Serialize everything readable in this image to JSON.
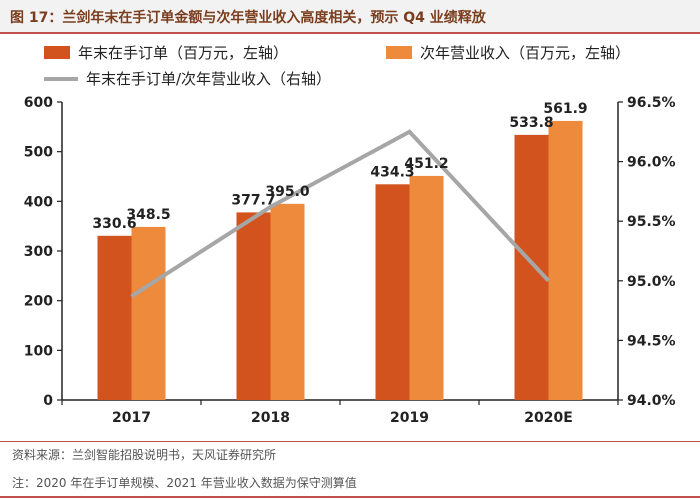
{
  "header": {
    "title": "图 17：兰剑年末在手订单金额与次年营业收入高度相关，预示 Q4 业绩释放"
  },
  "chart_data": {
    "type": "bar",
    "categories": [
      "2017",
      "2018",
      "2019",
      "2020E"
    ],
    "series": [
      {
        "name": "年末在手订单（百万元，左轴）",
        "type": "bar",
        "axis": "left",
        "color": "#d2531e",
        "values": [
          330.6,
          377.7,
          434.3,
          533.8
        ]
      },
      {
        "name": "次年营业收入（百万元，左轴）",
        "type": "bar",
        "axis": "left",
        "color": "#ed8a3c",
        "values": [
          348.5,
          395.0,
          451.2,
          561.9
        ]
      },
      {
        "name": "年末在手订单/次年营业收入（右轴）",
        "type": "line",
        "axis": "right",
        "color": "#a6a6a6",
        "values": [
          94.87,
          95.62,
          96.25,
          95.0
        ]
      }
    ],
    "data_labels": [
      [
        "330.6",
        "377.7",
        "434.3",
        "533.8"
      ],
      [
        "348.5",
        "395.0",
        "451.2",
        "561.9"
      ]
    ],
    "left_axis": {
      "min": 0,
      "max": 600,
      "ticks": [
        "0",
        "100",
        "200",
        "300",
        "400",
        "500",
        "600"
      ]
    },
    "right_axis": {
      "min": 94.0,
      "max": 96.5,
      "ticks": [
        "94.0%",
        "94.5%",
        "95.0%",
        "95.5%",
        "96.0%",
        "96.5%"
      ]
    },
    "grid": false,
    "legend_position": "top-left"
  },
  "footer": {
    "source": "资料来源：兰剑智能招股说明书，天风证券研究所",
    "note": "注：2020 年在手订单规模、2021 年营业收入数据为保守测算值"
  }
}
